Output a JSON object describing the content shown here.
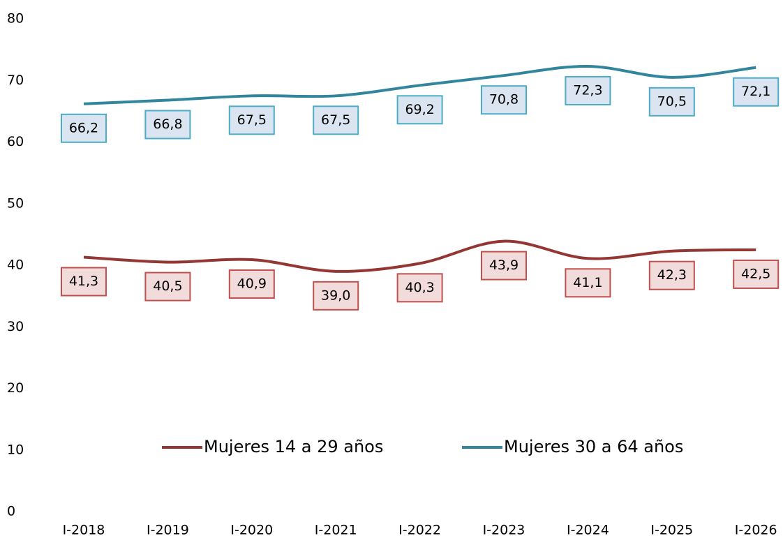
{
  "chart_data": {
    "type": "line",
    "categories": [
      "I-2018",
      "I-2019",
      "I-2020",
      "I-2021",
      "I-2022",
      "I-2023",
      "I-2024",
      "I-2025",
      "I-2026"
    ],
    "series": [
      {
        "name": "Mujeres 14 a 29 años",
        "color": "#943634",
        "label_fill": "#f2dcdb",
        "label_stroke": "#c0504d",
        "values": [
          41.3,
          40.5,
          40.9,
          39.0,
          40.3,
          43.9,
          41.1,
          42.3,
          42.5
        ],
        "value_labels": [
          "41,3",
          "40,5",
          "40,9",
          "39,0",
          "40,3",
          "43,9",
          "41,1",
          "42,3",
          "42,5"
        ]
      },
      {
        "name": "Mujeres 30 a 64 años",
        "color": "#31859c",
        "label_fill": "#dbe5f1",
        "label_stroke": "#4bacc6",
        "values": [
          66.2,
          66.8,
          67.5,
          67.5,
          69.2,
          70.8,
          72.3,
          70.5,
          72.1
        ],
        "value_labels": [
          "66,2",
          "66,8",
          "67,5",
          "67,5",
          "69,2",
          "70,8",
          "72,3",
          "70,5",
          "72,1"
        ]
      }
    ],
    "ylim": [
      0,
      80
    ],
    "yticks": [
      0,
      10,
      20,
      30,
      40,
      50,
      60,
      70,
      80
    ],
    "grid": false,
    "smooth": true,
    "legend": "bottom"
  }
}
